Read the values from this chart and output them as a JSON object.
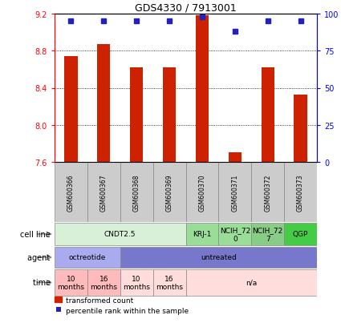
{
  "title": "GDS4330 / 7913001",
  "samples": [
    "GSM600366",
    "GSM600367",
    "GSM600368",
    "GSM600369",
    "GSM600370",
    "GSM600371",
    "GSM600372",
    "GSM600373"
  ],
  "bar_values": [
    8.74,
    8.87,
    8.62,
    8.62,
    9.18,
    7.7,
    8.62,
    8.33
  ],
  "dot_values": [
    95,
    95,
    95,
    95,
    98,
    88,
    95,
    95
  ],
  "ylim": [
    7.6,
    9.2
  ],
  "y_ticks": [
    7.6,
    8.0,
    8.4,
    8.8,
    9.2
  ],
  "y2_ticks": [
    0,
    25,
    50,
    75,
    100
  ],
  "bar_color": "#cc2200",
  "dot_color": "#2222bb",
  "cell_line_groups": [
    {
      "label": "CNDT2.5",
      "span": [
        0,
        4
      ],
      "color": "#d8f0d8"
    },
    {
      "label": "KRJ-1",
      "span": [
        4,
        5
      ],
      "color": "#99dd99"
    },
    {
      "label": "NCIH_72\n0",
      "span": [
        5,
        6
      ],
      "color": "#99dd99"
    },
    {
      "label": "NCIH_72\n7",
      "span": [
        6,
        7
      ],
      "color": "#88cc88"
    },
    {
      "label": "QGP",
      "span": [
        7,
        8
      ],
      "color": "#44cc44"
    }
  ],
  "agent_groups": [
    {
      "label": "octreotide",
      "span": [
        0,
        2
      ],
      "color": "#aaaaee"
    },
    {
      "label": "untreated",
      "span": [
        2,
        8
      ],
      "color": "#7777cc"
    }
  ],
  "time_groups": [
    {
      "label": "10\nmonths",
      "span": [
        0,
        1
      ],
      "color": "#ffbbbb"
    },
    {
      "label": "16\nmonths",
      "span": [
        1,
        2
      ],
      "color": "#ffbbbb"
    },
    {
      "label": "10\nmonths",
      "span": [
        2,
        3
      ],
      "color": "#ffdddd"
    },
    {
      "label": "16\nmonths",
      "span": [
        3,
        4
      ],
      "color": "#ffdddd"
    },
    {
      "label": "n/a",
      "span": [
        4,
        8
      ],
      "color": "#ffdddd"
    }
  ],
  "legend_bar_label": "transformed count",
  "legend_dot_label": "percentile rank within the sample",
  "row_labels": [
    "cell line",
    "agent",
    "time"
  ]
}
